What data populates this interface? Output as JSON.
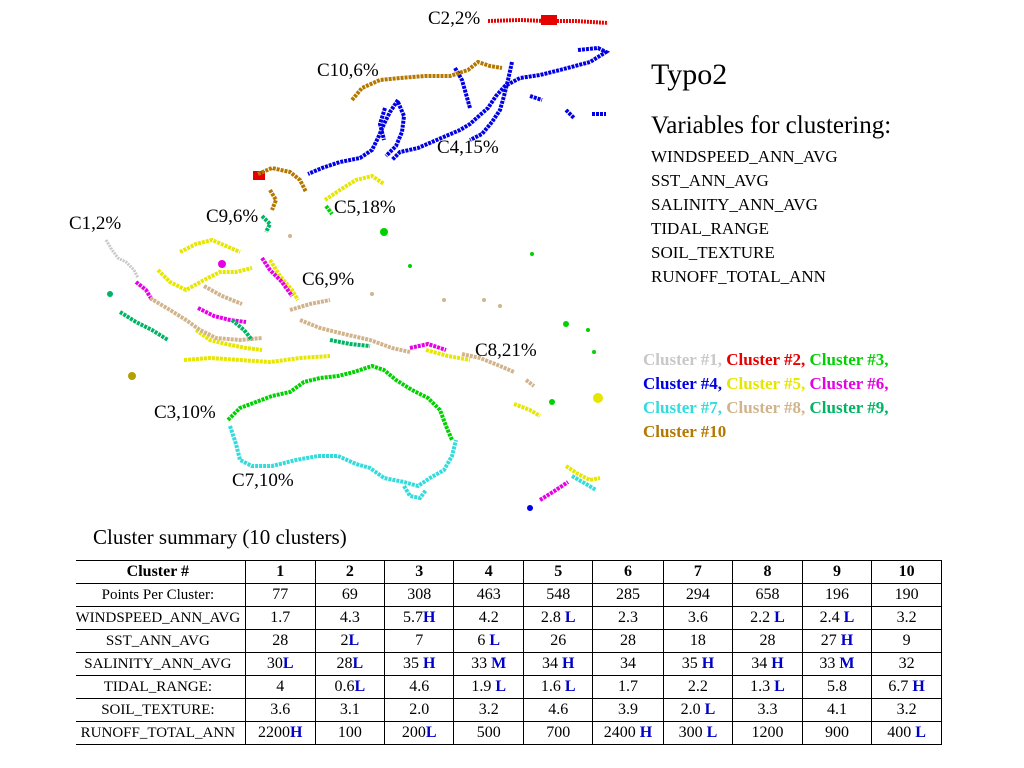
{
  "map": {
    "labels": [
      {
        "id": "c2",
        "text": "C2,2%"
      },
      {
        "id": "c10",
        "text": "C10,6%"
      },
      {
        "id": "c4",
        "text": "C4,15%"
      },
      {
        "id": "c5",
        "text": "C5,18%"
      },
      {
        "id": "c9",
        "text": "C9,6%"
      },
      {
        "id": "c1",
        "text": "C1,2%"
      },
      {
        "id": "c6",
        "text": "C6,9%"
      },
      {
        "id": "c8",
        "text": "C8,21%"
      },
      {
        "id": "c3",
        "text": "C3,10%"
      },
      {
        "id": "c7",
        "text": "C7,10%"
      }
    ]
  },
  "title": "Typo2",
  "variables": {
    "heading": "Variables for clustering:",
    "items": [
      "WINDSPEED_ANN_AVG",
      "SST_ANN_AVG",
      "SALINITY_ANN_AVG",
      "TIDAL_RANGE",
      "SOIL_TEXTURE",
      "RUNOFF_TOTAL_ANN"
    ]
  },
  "legend": [
    {
      "label": "Cluster #1,",
      "color": "#c8c8c8"
    },
    {
      "label": "Cluster #2,",
      "color": "#e60000"
    },
    {
      "label": "Cluster #3,",
      "color": "#00d200"
    },
    {
      "label": "Cluster #4,",
      "color": "#0000e6"
    },
    {
      "label": "Cluster #5,",
      "color": "#e6e600"
    },
    {
      "label": "Cluster #6,",
      "color": "#e600e6"
    },
    {
      "label": "Cluster #7,",
      "color": "#32dcdc"
    },
    {
      "label": "Cluster #8,",
      "color": "#d2b48c"
    },
    {
      "label": "Cluster #9,",
      "color": "#00b464"
    },
    {
      "label": "Cluster #10",
      "color": "#b47800"
    }
  ],
  "summary": {
    "caption": "Cluster summary (10 clusters)",
    "header": [
      "Cluster #",
      "1",
      "2",
      "3",
      "4",
      "5",
      "6",
      "7",
      "8",
      "9",
      "10"
    ],
    "rows": [
      {
        "label": "Points Per Cluster:",
        "cells": [
          [
            "77",
            ""
          ],
          [
            "69",
            ""
          ],
          [
            "308",
            ""
          ],
          [
            "463",
            ""
          ],
          [
            "548",
            ""
          ],
          [
            "285",
            ""
          ],
          [
            "294",
            ""
          ],
          [
            "658",
            ""
          ],
          [
            "196",
            ""
          ],
          [
            "190",
            ""
          ]
        ]
      },
      {
        "label": "WINDSPEED_ANN_AVG",
        "cells": [
          [
            "1.7",
            ""
          ],
          [
            "4.3",
            ""
          ],
          [
            "5.7",
            "H"
          ],
          [
            "4.2",
            ""
          ],
          [
            "2.8 ",
            "L"
          ],
          [
            "2.3",
            ""
          ],
          [
            "3.6",
            ""
          ],
          [
            "2.2 ",
            "L"
          ],
          [
            "2.4 ",
            "L"
          ],
          [
            "3.2",
            ""
          ]
        ]
      },
      {
        "label": "SST_ANN_AVG",
        "cells": [
          [
            "28",
            ""
          ],
          [
            "2",
            "L"
          ],
          [
            "7",
            ""
          ],
          [
            "6 ",
            "L"
          ],
          [
            "26",
            ""
          ],
          [
            "28",
            ""
          ],
          [
            "18",
            ""
          ],
          [
            "28",
            ""
          ],
          [
            "27 ",
            "H"
          ],
          [
            "9",
            ""
          ]
        ]
      },
      {
        "label": "SALINITY_ANN_AVG",
        "cells": [
          [
            "30",
            "L"
          ],
          [
            "28",
            "L"
          ],
          [
            "35 ",
            "H"
          ],
          [
            "33 ",
            "M"
          ],
          [
            "34 ",
            "H"
          ],
          [
            "34",
            ""
          ],
          [
            "35 ",
            "H"
          ],
          [
            "34 ",
            "H"
          ],
          [
            "33 ",
            "M"
          ],
          [
            "32",
            ""
          ]
        ]
      },
      {
        "label": "TIDAL_RANGE:",
        "cells": [
          [
            "4",
            ""
          ],
          [
            "0.6",
            "L"
          ],
          [
            "4.6",
            ""
          ],
          [
            "1.9 ",
            "L"
          ],
          [
            "1.6 ",
            "L"
          ],
          [
            "1.7",
            ""
          ],
          [
            "2.2",
            ""
          ],
          [
            "1.3 ",
            "L"
          ],
          [
            "5.8",
            ""
          ],
          [
            "6.7 ",
            "H"
          ]
        ]
      },
      {
        "label": "SOIL_TEXTURE:",
        "cells": [
          [
            "3.6",
            ""
          ],
          [
            "3.1",
            ""
          ],
          [
            "2.0",
            ""
          ],
          [
            "3.2",
            ""
          ],
          [
            "4.6",
            ""
          ],
          [
            "3.9",
            ""
          ],
          [
            "2.0 ",
            "L"
          ],
          [
            "3.3",
            ""
          ],
          [
            "4.1",
            ""
          ],
          [
            "3.2",
            ""
          ]
        ]
      },
      {
        "label": "RUNOFF_TOTAL_ANN",
        "cells": [
          [
            "2200",
            "H"
          ],
          [
            "100",
            ""
          ],
          [
            "200",
            "L"
          ],
          [
            "500",
            ""
          ],
          [
            "700",
            ""
          ],
          [
            "2400 ",
            "H"
          ],
          [
            "300 ",
            "L"
          ],
          [
            "1200",
            ""
          ],
          [
            "900",
            ""
          ],
          [
            "400 ",
            "L"
          ]
        ]
      }
    ]
  }
}
